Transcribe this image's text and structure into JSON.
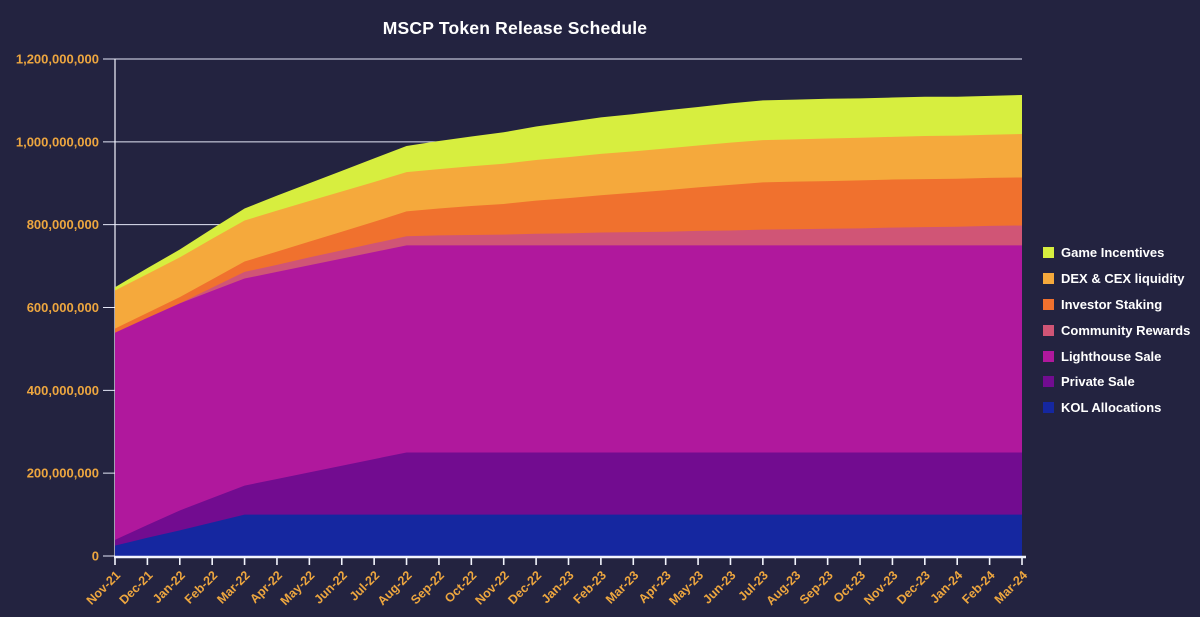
{
  "title": "MSCP Token Release Schedule",
  "colors": {
    "background": "#232340",
    "axis_label": "#eda63f",
    "gridline": "#e4e7f7",
    "axis_line": "#f2f4fd",
    "title_text": "#ffffff",
    "legend_text": "#ffffff"
  },
  "chart_data": {
    "type": "area",
    "stacked": true,
    "title": "MSCP Token Release Schedule",
    "xlabel": "",
    "ylabel": "",
    "grid": true,
    "legend_position": "right",
    "ylim": [
      0,
      1200000000
    ],
    "ytick_values": [
      0,
      200000000,
      400000000,
      600000000,
      800000000,
      1000000000,
      1200000000
    ],
    "x": [
      "Nov-21",
      "Dec-21",
      "Jan-22",
      "Feb-22",
      "Mar-22",
      "Apr-22",
      "May-22",
      "Jun-22",
      "Jul-22",
      "Aug-22",
      "Sep-22",
      "Oct-22",
      "Nov-22",
      "Dec-22",
      "Jan-23",
      "Feb-23",
      "Mar-23",
      "Apr-23",
      "May-23",
      "Jun-23",
      "Jul-23",
      "Aug-23",
      "Sep-23",
      "Oct-23",
      "Nov-23",
      "Dec-23",
      "Jan-24",
      "Feb-24",
      "Mar-24"
    ],
    "series": [
      {
        "name": "KOL Allocations",
        "slug": "kol-allocations",
        "color": "#1527a0",
        "values": [
          25000000,
          44000000,
          62000000,
          81000000,
          100000000,
          100000000,
          100000000,
          100000000,
          100000000,
          100000000,
          100000000,
          100000000,
          100000000,
          100000000,
          100000000,
          100000000,
          100000000,
          100000000,
          100000000,
          100000000,
          100000000,
          100000000,
          100000000,
          100000000,
          100000000,
          100000000,
          100000000,
          100000000,
          100000000
        ]
      },
      {
        "name": "Private Sale",
        "slug": "private-sale",
        "color": "#720c90",
        "values": [
          14000000,
          31000000,
          48000000,
          59000000,
          70000000,
          86000000,
          102000000,
          118000000,
          134000000,
          150000000,
          150000000,
          150000000,
          150000000,
          150000000,
          150000000,
          150000000,
          150000000,
          150000000,
          150000000,
          150000000,
          150000000,
          150000000,
          150000000,
          150000000,
          150000000,
          150000000,
          150000000,
          150000000,
          150000000
        ]
      },
      {
        "name": "Lighthouse Sale",
        "slug": "lighthouse-sale",
        "color": "#b0189d",
        "values": [
          500000000,
          500000000,
          500000000,
          500000000,
          500000000,
          500000000,
          500000000,
          500000000,
          500000000,
          500000000,
          500000000,
          500000000,
          500000000,
          500000000,
          500000000,
          500000000,
          500000000,
          500000000,
          500000000,
          500000000,
          500000000,
          500000000,
          500000000,
          500000000,
          500000000,
          500000000,
          500000000,
          500000000,
          500000000
        ]
      },
      {
        "name": "Community Rewards",
        "slug": "community-rewards",
        "color": "#d05576",
        "values": [
          0,
          0,
          0,
          8000000,
          16000000,
          17000000,
          19000000,
          20000000,
          21000000,
          22000000,
          24000000,
          25000000,
          26000000,
          28000000,
          29000000,
          31000000,
          32000000,
          33000000,
          35000000,
          36000000,
          38000000,
          39000000,
          40000000,
          41000000,
          43000000,
          44000000,
          45000000,
          47000000,
          48000000
        ]
      },
      {
        "name": "Investor Staking",
        "slug": "investor-staking",
        "color": "#f0712e",
        "values": [
          10000000,
          12000000,
          15000000,
          20000000,
          25000000,
          32000000,
          38000000,
          45000000,
          52000000,
          60000000,
          65000000,
          70000000,
          74000000,
          80000000,
          85000000,
          90000000,
          95000000,
          100000000,
          105000000,
          110000000,
          114000000,
          115000000,
          115000000,
          116000000,
          116000000,
          116000000,
          116000000,
          116000000,
          116000000
        ]
      },
      {
        "name": "DEX & CEX liquidity",
        "slug": "dex-cex-liquidity",
        "color": "#f5a93c",
        "values": [
          92000000,
          94000000,
          96000000,
          98000000,
          99000000,
          99000000,
          98000000,
          97000000,
          96000000,
          95000000,
          95000000,
          96000000,
          97000000,
          98000000,
          99000000,
          100000000,
          100000000,
          101000000,
          101000000,
          102000000,
          102000000,
          102000000,
          103000000,
          103000000,
          103000000,
          104000000,
          104000000,
          104000000,
          105000000
        ]
      },
      {
        "name": "Game Incentives",
        "slug": "game-incentives",
        "color": "#d7ee3f",
        "values": [
          8000000,
          14000000,
          19000000,
          24000000,
          29000000,
          36000000,
          43000000,
          50000000,
          57000000,
          63000000,
          68000000,
          72000000,
          76000000,
          81000000,
          85000000,
          88000000,
          90000000,
          92000000,
          93000000,
          95000000,
          96000000,
          96000000,
          96000000,
          95000000,
          95000000,
          95000000,
          94000000,
          94000000,
          94000000
        ]
      }
    ],
    "legend_order_top_to_bottom": [
      "Game Incentives",
      "DEX & CEX liquidity",
      "Investor Staking",
      "Community Rewards",
      "Lighthouse Sale",
      "Private Sale",
      "KOL Allocations"
    ]
  }
}
